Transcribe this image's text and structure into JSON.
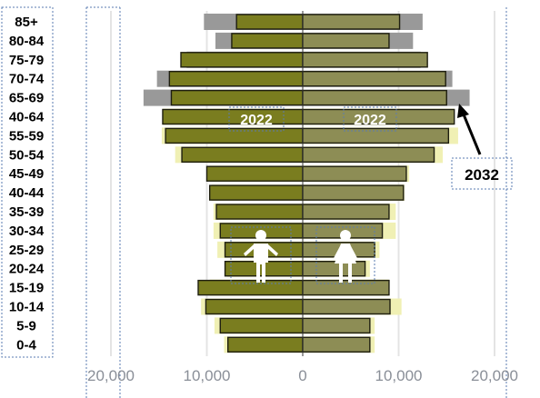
{
  "chart_data": {
    "type": "bar",
    "subtype": "population-pyramid",
    "categories": [
      "85+",
      "80-84",
      "75-79",
      "70-74",
      "65-69",
      "40-64",
      "55-59",
      "50-54",
      "45-49",
      "40-44",
      "35-39",
      "30-34",
      "25-29",
      "20-24",
      "15-19",
      "10-14",
      "5-9",
      "0-4"
    ],
    "series": [
      {
        "name": "2022",
        "male": [
          6900,
          7400,
          12700,
          13900,
          13700,
          14600,
          14300,
          12600,
          10000,
          9700,
          9000,
          8600,
          8100,
          8100,
          10900,
          10100,
          8600,
          7800
        ],
        "female": [
          10100,
          9000,
          13000,
          14900,
          15000,
          15800,
          15200,
          13700,
          10800,
          10500,
          9000,
          8300,
          7500,
          6500,
          9000,
          9100,
          7000,
          7000
        ]
      },
      {
        "name": "2032",
        "male": [
          10300,
          9100,
          12100,
          15200,
          16600,
          14600,
          14700,
          13300,
          9700,
          9500,
          9300,
          9300,
          8900,
          7900,
          9700,
          10600,
          9200,
          8200
        ],
        "female": [
          12500,
          11500,
          12300,
          15600,
          17400,
          15800,
          16200,
          14600,
          11100,
          10600,
          9700,
          9700,
          8000,
          7000,
          9000,
          10300,
          7500,
          7500
        ]
      }
    ],
    "colors": {
      "male_2022": "#7a7d1f",
      "female_2022": "#8d8d55",
      "grow_2032": "#f0f0b4",
      "old_2032": "#999999"
    },
    "xlim": [
      -20000,
      20000
    ],
    "x_ticks": [
      "20,000",
      "10,000",
      "0",
      "10,000",
      "20,000"
    ],
    "annotations": {
      "label_male": "2022",
      "label_female": "2022",
      "label_projection": "2032"
    },
    "icons": [
      "male-person-icon",
      "female-person-icon"
    ]
  }
}
